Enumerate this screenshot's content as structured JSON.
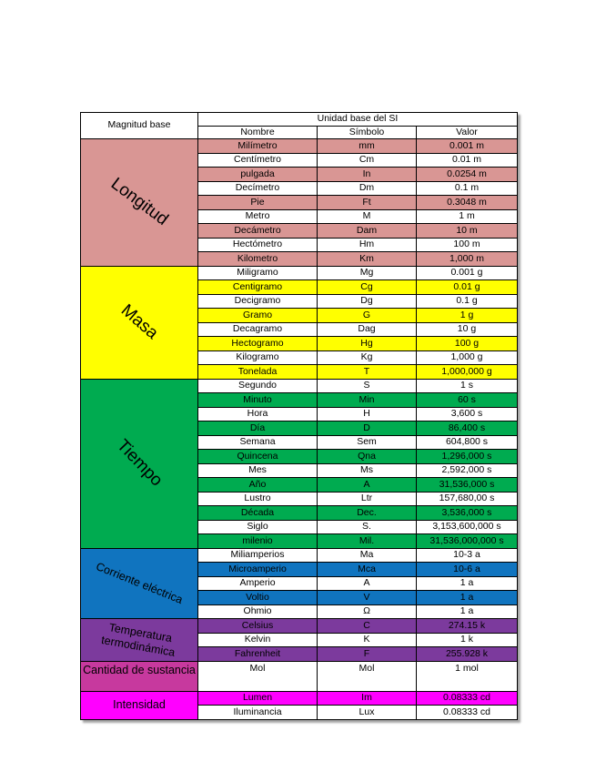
{
  "header": {
    "magnitud_base": "Magnitud base",
    "unidad_base": "Unidad base del SI",
    "nombre": "Nombre",
    "simbolo": "Símbolo",
    "valor": "Valor"
  },
  "sections": [
    {
      "id": "longitud",
      "label": "Longitud",
      "color": "#d99694",
      "rows": [
        {
          "nombre": "Milímetro",
          "simbolo": "mm",
          "valor": "0.001 m",
          "shaded": true
        },
        {
          "nombre": "Centímetro",
          "simbolo": "Cm",
          "valor": "0.01 m",
          "shaded": false
        },
        {
          "nombre": "pulgada",
          "simbolo": "In",
          "valor": "0.0254 m",
          "shaded": true
        },
        {
          "nombre": "Decímetro",
          "simbolo": "Dm",
          "valor": "0.1 m",
          "shaded": false
        },
        {
          "nombre": "Pie",
          "simbolo": "Ft",
          "valor": "0.3048 m",
          "shaded": true
        },
        {
          "nombre": "Metro",
          "simbolo": "M",
          "valor": "1 m",
          "shaded": false
        },
        {
          "nombre": "Decámetro",
          "simbolo": "Dam",
          "valor": "10 m",
          "shaded": true
        },
        {
          "nombre": "Hectómetro",
          "simbolo": "Hm",
          "valor": "100 m",
          "shaded": false
        },
        {
          "nombre": "Kilometro",
          "simbolo": "Km",
          "valor": "1,000 m",
          "shaded": true
        }
      ]
    },
    {
      "id": "masa",
      "label": "Masa",
      "color": "#ffff00",
      "rows": [
        {
          "nombre": "Miligramo",
          "simbolo": "Mg",
          "valor": "0.001 g",
          "shaded": false
        },
        {
          "nombre": "Centigramo",
          "simbolo": "Cg",
          "valor": "0.01 g",
          "shaded": true
        },
        {
          "nombre": "Decigramo",
          "simbolo": "Dg",
          "valor": "0.1 g",
          "shaded": false
        },
        {
          "nombre": "Gramo",
          "simbolo": "G",
          "valor": "1 g",
          "shaded": true
        },
        {
          "nombre": "Decagramo",
          "simbolo": "Dag",
          "valor": "10 g",
          "shaded": false
        },
        {
          "nombre": "Hectogramo",
          "simbolo": "Hg",
          "valor": "100 g",
          "shaded": true
        },
        {
          "nombre": "Kilogramo",
          "simbolo": "Kg",
          "valor": "1,000 g",
          "shaded": false
        },
        {
          "nombre": "Tonelada",
          "simbolo": "T",
          "valor": "1,000,000 g",
          "shaded": true
        }
      ]
    },
    {
      "id": "tiempo",
      "label": "Tiempo",
      "color": "#00ab50",
      "rows": [
        {
          "nombre": "Segundo",
          "simbolo": "S",
          "valor": "1 s",
          "shaded": false
        },
        {
          "nombre": "Minuto",
          "simbolo": "Min",
          "valor": "60 s",
          "shaded": true
        },
        {
          "nombre": "Hora",
          "simbolo": "H",
          "valor": "3,600 s",
          "shaded": false
        },
        {
          "nombre": "Día",
          "simbolo": "D",
          "valor": "86,400 s",
          "shaded": true
        },
        {
          "nombre": "Semana",
          "simbolo": "Sem",
          "valor": "604,800 s",
          "shaded": false
        },
        {
          "nombre": "Quincena",
          "simbolo": "Qna",
          "valor": "1,296,000 s",
          "shaded": true
        },
        {
          "nombre": "Mes",
          "simbolo": "Ms",
          "valor": "2,592,000 s",
          "shaded": false
        },
        {
          "nombre": "Año",
          "simbolo": "A",
          "valor": "31,536,000 s",
          "shaded": true
        },
        {
          "nombre": "Lustro",
          "simbolo": "Ltr",
          "valor": "157,680,00 s",
          "shaded": false
        },
        {
          "nombre": "Década",
          "simbolo": "Dec.",
          "valor": "3,536,000 s",
          "shaded": true
        },
        {
          "nombre": "Siglo",
          "simbolo": "S.",
          "valor": "3,153,600,000 s",
          "shaded": false
        },
        {
          "nombre": "milenio",
          "simbolo": "Mil.",
          "valor": "31,536,000,000 s",
          "shaded": true
        }
      ]
    },
    {
      "id": "corriente",
      "label": "Corriente eléctrica",
      "color": "#1074bf",
      "rows": [
        {
          "nombre": "Miliamperios",
          "simbolo": "Ma",
          "valor": "10-3 a",
          "shaded": false
        },
        {
          "nombre": "Microamperio",
          "simbolo": "Mca",
          "valor": "10-6 a",
          "shaded": true
        },
        {
          "nombre": "Amperio",
          "simbolo": "A",
          "valor": "1 a",
          "shaded": false
        },
        {
          "nombre": "Voltio",
          "simbolo": "V",
          "valor": "1 a",
          "shaded": true
        },
        {
          "nombre": "Ohmio",
          "simbolo": "Ω",
          "valor": "1 a",
          "shaded": false
        }
      ]
    },
    {
      "id": "temperatura",
      "label": "Temperatura termodinámica",
      "color": "#7c3a9d",
      "rows": [
        {
          "nombre": "Celsius",
          "simbolo": "C",
          "valor": "274.15 k",
          "shaded": true
        },
        {
          "nombre": "Kelvin",
          "simbolo": "K",
          "valor": "1 k",
          "shaded": false
        },
        {
          "nombre": "Fahrenheit",
          "simbolo": "F",
          "valor": "255.928 k",
          "shaded": true
        }
      ]
    },
    {
      "id": "cantidad",
      "label": "Cantidad de sustancia",
      "color": "#c7399e",
      "rows": [
        {
          "nombre": "Mol",
          "simbolo": "Mol",
          "valor": "1 mol",
          "shaded": false,
          "tall": true
        }
      ]
    },
    {
      "id": "intensidad",
      "label": "Intensidad",
      "color": "#ff00ff",
      "rows": [
        {
          "nombre": "Lumen",
          "simbolo": "Im",
          "valor": "0.08333 cd",
          "shaded": true
        },
        {
          "nombre": "Iluminancia",
          "simbolo": "Lux",
          "valor": "0.08333 cd",
          "shaded": false
        }
      ]
    }
  ]
}
